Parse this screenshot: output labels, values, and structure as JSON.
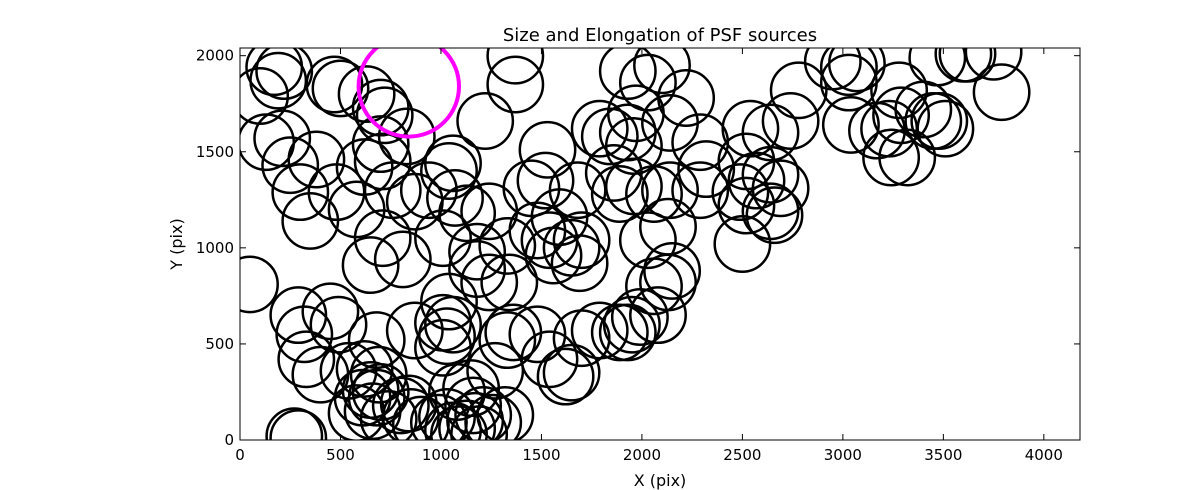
{
  "chart_data": {
    "type": "scatter",
    "title": "Size and Elongation of PSF sources",
    "xlabel": "X (pix)",
    "ylabel": "Y (pix)",
    "xlim": [
      0,
      4180
    ],
    "ylim": [
      0,
      2040
    ],
    "xticks": [
      0,
      500,
      1000,
      1500,
      2000,
      2500,
      3000,
      3500,
      4000
    ],
    "yticks": [
      0,
      500,
      1000,
      1500,
      2000
    ],
    "grid": false,
    "marker_radius_data_units": 138,
    "highlight": {
      "x": 840,
      "y": 1840,
      "r": 250,
      "color": "#ff00ff"
    },
    "series": [
      {
        "color": "#000000",
        "points": [
          [
            100,
            1790
          ],
          [
            170,
            1940
          ],
          [
            220,
            1920
          ],
          [
            190,
            1870
          ],
          [
            130,
            1550
          ],
          [
            210,
            1570
          ],
          [
            250,
            1430
          ],
          [
            300,
            1290
          ],
          [
            380,
            1460
          ],
          [
            480,
            1290
          ],
          [
            350,
            1140
          ],
          [
            470,
            1850
          ],
          [
            500,
            1830
          ],
          [
            630,
            1800
          ],
          [
            700,
            1730
          ],
          [
            720,
            1690
          ],
          [
            830,
            1580
          ],
          [
            620,
            1420
          ],
          [
            700,
            1540
          ],
          [
            710,
            1450
          ],
          [
            580,
            1200
          ],
          [
            760,
            1300
          ],
          [
            710,
            1050
          ],
          [
            650,
            910
          ],
          [
            810,
            940
          ],
          [
            870,
            1240
          ],
          [
            940,
            1300
          ],
          [
            1040,
            1400
          ],
          [
            1060,
            1440
          ],
          [
            1070,
            1260
          ],
          [
            1010,
            1050
          ],
          [
            1130,
            1180
          ],
          [
            1240,
            1190
          ],
          [
            1370,
            1850
          ],
          [
            1370,
            2000
          ],
          [
            1220,
            1660
          ],
          [
            1180,
            890
          ],
          [
            1240,
            820
          ],
          [
            1330,
            1010
          ],
          [
            1180,
            980
          ],
          [
            1340,
            820
          ],
          [
            1480,
            1090
          ],
          [
            1540,
            1040
          ],
          [
            1560,
            960
          ],
          [
            1450,
            1310
          ],
          [
            1520,
            1350
          ],
          [
            1530,
            1510
          ],
          [
            1680,
            1300
          ],
          [
            1590,
            1160
          ],
          [
            1650,
            1000
          ],
          [
            1690,
            920
          ],
          [
            1700,
            1040
          ],
          [
            1790,
            1620
          ],
          [
            1840,
            1580
          ],
          [
            1860,
            1390
          ],
          [
            1890,
            1280
          ],
          [
            1960,
            1320
          ],
          [
            1930,
            1600
          ],
          [
            1970,
            1700
          ],
          [
            1960,
            1530
          ],
          [
            1930,
            1920
          ],
          [
            2030,
            1860
          ],
          [
            2100,
            1950
          ],
          [
            2140,
            1650
          ],
          [
            2220,
            1780
          ],
          [
            2290,
            1550
          ],
          [
            2320,
            1410
          ],
          [
            2290,
            1300
          ],
          [
            2140,
            1300
          ],
          [
            2060,
            1280
          ],
          [
            2130,
            1110
          ],
          [
            2030,
            1040
          ],
          [
            2060,
            800
          ],
          [
            2130,
            820
          ],
          [
            2150,
            880
          ],
          [
            2080,
            650
          ],
          [
            1930,
            560
          ],
          [
            1950,
            600
          ],
          [
            1990,
            640
          ],
          [
            1890,
            560
          ],
          [
            1790,
            570
          ],
          [
            1700,
            530
          ],
          [
            1650,
            350
          ],
          [
            1620,
            330
          ],
          [
            1540,
            420
          ],
          [
            1480,
            550
          ],
          [
            1360,
            560
          ],
          [
            1330,
            520
          ],
          [
            1270,
            360
          ],
          [
            1210,
            130
          ],
          [
            1320,
            130
          ],
          [
            1260,
            90
          ],
          [
            1130,
            60
          ],
          [
            1060,
            50
          ],
          [
            1030,
            120
          ],
          [
            990,
            90
          ],
          [
            900,
            80
          ],
          [
            850,
            120
          ],
          [
            840,
            190
          ],
          [
            800,
            180
          ],
          [
            740,
            110
          ],
          [
            660,
            150
          ],
          [
            580,
            140
          ],
          [
            610,
            220
          ],
          [
            650,
            260
          ],
          [
            620,
            370
          ],
          [
            690,
            340
          ],
          [
            680,
            220
          ],
          [
            700,
            250
          ],
          [
            540,
            360
          ],
          [
            400,
            340
          ],
          [
            330,
            420
          ],
          [
            320,
            550
          ],
          [
            290,
            650
          ],
          [
            450,
            670
          ],
          [
            490,
            600
          ],
          [
            680,
            520
          ],
          [
            870,
            570
          ],
          [
            1010,
            610
          ],
          [
            1060,
            600
          ],
          [
            1040,
            720
          ],
          [
            1030,
            540
          ],
          [
            1010,
            480
          ],
          [
            1080,
            250
          ],
          [
            1150,
            270
          ],
          [
            1160,
            180
          ],
          [
            1170,
            100
          ],
          [
            1190,
            30
          ],
          [
            1090,
            30
          ],
          [
            270,
            20
          ],
          [
            290,
            10
          ],
          [
            50,
            810
          ],
          [
            2540,
            1620
          ],
          [
            2520,
            1450
          ],
          [
            2570,
            1350
          ],
          [
            2640,
            1380
          ],
          [
            2690,
            1310
          ],
          [
            2640,
            1190
          ],
          [
            2490,
            1290
          ],
          [
            2520,
            1220
          ],
          [
            2660,
            1170
          ],
          [
            2500,
            1020
          ],
          [
            2640,
            1600
          ],
          [
            2780,
            1820
          ],
          [
            2740,
            1660
          ],
          [
            2950,
            1970
          ],
          [
            3030,
            1940
          ],
          [
            3070,
            1960
          ],
          [
            3170,
            1610
          ],
          [
            3230,
            1620
          ],
          [
            3240,
            1470
          ],
          [
            3290,
            1690
          ],
          [
            3280,
            1820
          ],
          [
            3320,
            1470
          ],
          [
            3400,
            1720
          ],
          [
            3450,
            1660
          ],
          [
            3480,
            1660
          ],
          [
            3510,
            1620
          ],
          [
            3600,
            2010
          ],
          [
            3620,
            2010
          ],
          [
            3750,
            2020
          ],
          [
            3790,
            1810
          ],
          [
            3470,
            1990
          ],
          [
            3040,
            1640
          ],
          [
            3030,
            1860
          ]
        ]
      }
    ]
  }
}
